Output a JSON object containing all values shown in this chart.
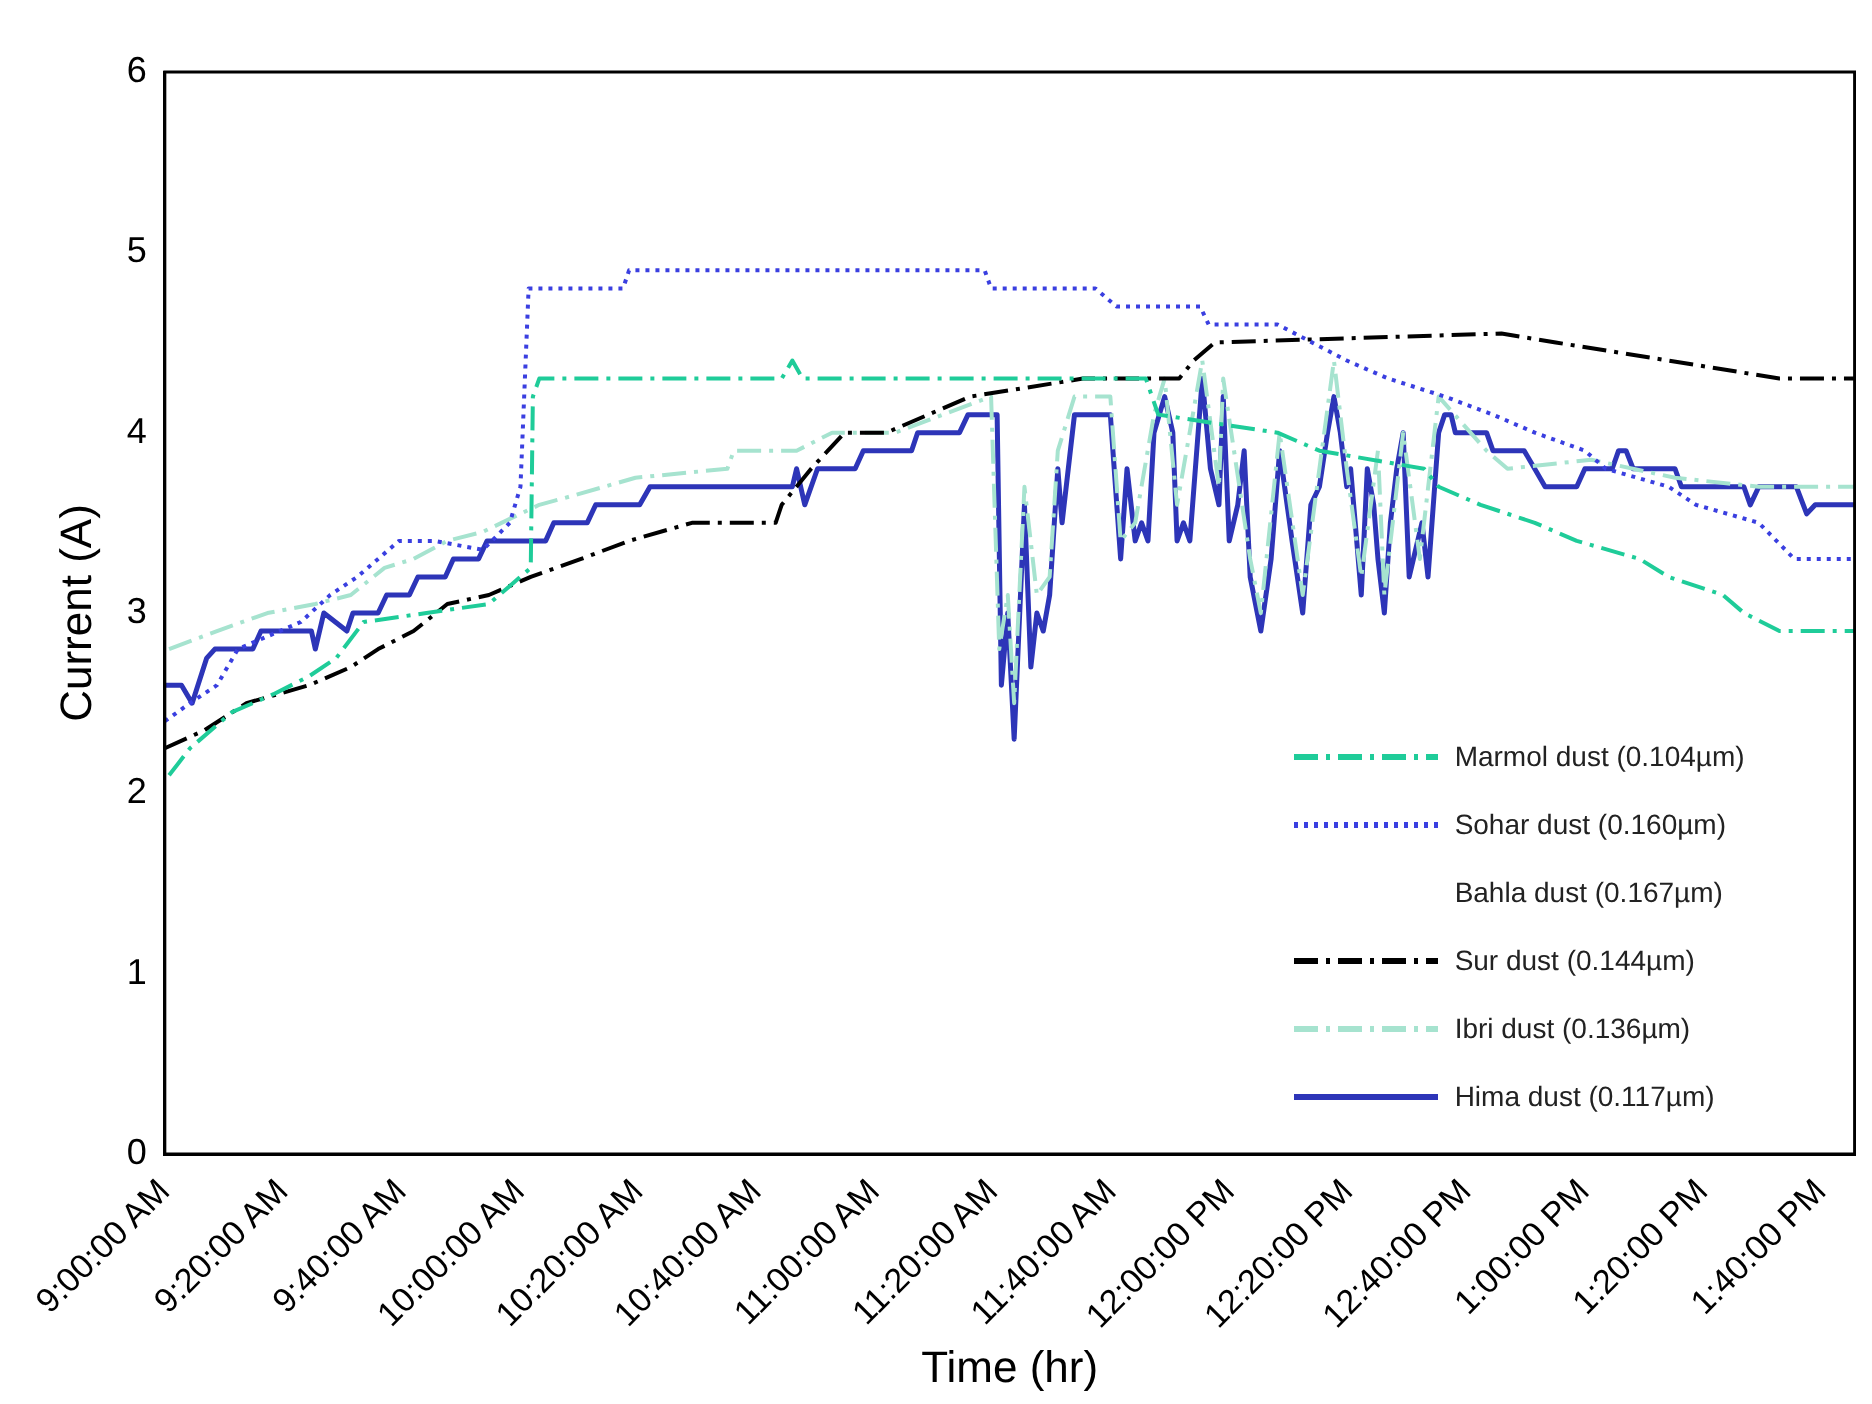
{
  "chart_data": {
    "type": "line",
    "xlabel": "Time (hr)",
    "ylabel": "Current (A)",
    "xlim": [
      9,
      13.761
    ],
    "ylim": [
      0,
      6
    ],
    "yticks": [
      0,
      1,
      2,
      3,
      4,
      5,
      6
    ],
    "xticks": [
      {
        "value": 9,
        "label": "9:00:00 AM"
      },
      {
        "value": 9.3333,
        "label": "9:20:00 AM"
      },
      {
        "value": 9.6667,
        "label": "9:40:00 AM"
      },
      {
        "value": 10,
        "label": "10:00:00 AM"
      },
      {
        "value": 10.3333,
        "label": "10:20:00 AM"
      },
      {
        "value": 10.6667,
        "label": "10:40:00 AM"
      },
      {
        "value": 11,
        "label": "11:00:00 AM"
      },
      {
        "value": 11.3333,
        "label": "11:20:00 AM"
      },
      {
        "value": 11.6667,
        "label": "11:40:00 AM"
      },
      {
        "value": 12,
        "label": "12:00:00 PM"
      },
      {
        "value": 12.3333,
        "label": "12:20:00 PM"
      },
      {
        "value": 12.6667,
        "label": "12:40:00 PM"
      },
      {
        "value": 13,
        "label": "1:00:00 PM"
      },
      {
        "value": 13.3333,
        "label": "1:20:00 PM"
      },
      {
        "value": 13.6667,
        "label": "1:40:00 PM"
      }
    ],
    "grid": false,
    "legend": "bottom right",
    "marker": "none",
    "series": [
      {
        "name": "Marmol dust (0.104µm)",
        "color": "#1fcc99",
        "line_style": "dashed",
        "x": [
          9.012,
          9.071,
          9.189,
          9.306,
          9.407,
          9.483,
          9.56,
          9.737,
          9.913,
          10.031,
          10.037,
          10.055,
          10.738,
          10.768,
          10.797,
          11.764,
          11.799,
          12.135,
          12.253,
          12.548,
          12.589,
          12.707,
          12.86,
          12.978,
          13.155,
          13.237,
          13.39,
          13.449,
          13.549,
          13.761
        ],
        "values": [
          2.1,
          2.25,
          2.45,
          2.55,
          2.65,
          2.75,
          2.95,
          3.0,
          3.05,
          3.25,
          4.2,
          4.3,
          4.3,
          4.4,
          4.3,
          4.3,
          4.1,
          4.0,
          3.9,
          3.8,
          3.7,
          3.6,
          3.5,
          3.4,
          3.3,
          3.2,
          3.1,
          3.0,
          2.9,
          2.9
        ]
      },
      {
        "name": "Sohar dust (0.160µm)",
        "color": "#3a3fe0",
        "line_style": "dotted",
        "x": [
          9.0,
          9.071,
          9.147,
          9.206,
          9.383,
          9.466,
          9.542,
          9.66,
          9.76,
          9.896,
          9.972,
          10.002,
          10.025,
          10.291,
          10.308,
          11.31,
          11.328,
          11.622,
          11.681,
          11.917,
          11.941,
          12.135,
          12.33,
          12.447,
          12.607,
          12.742,
          12.86,
          13.001,
          13.06,
          13.237,
          13.314,
          13.491,
          13.591,
          13.761
        ],
        "values": [
          2.4,
          2.5,
          2.6,
          2.8,
          2.95,
          3.1,
          3.2,
          3.4,
          3.4,
          3.35,
          3.5,
          3.7,
          4.8,
          4.8,
          4.9,
          4.9,
          4.8,
          4.8,
          4.7,
          4.7,
          4.6,
          4.6,
          4.4,
          4.3,
          4.2,
          4.1,
          4.0,
          3.9,
          3.8,
          3.7,
          3.6,
          3.5,
          3.3,
          3.3
        ]
      },
      {
        "name": "Bahla dust (0.167µm)"
      },
      {
        "name": "Sur dust (0.144µm)",
        "color": "#000000",
        "line_style": "dashed",
        "x": [
          9.0,
          9.112,
          9.23,
          9.407,
          9.524,
          9.601,
          9.701,
          9.796,
          9.913,
          10.031,
          10.173,
          10.308,
          10.485,
          10.721,
          10.738,
          10.821,
          10.915,
          11.033,
          11.151,
          11.269,
          11.587,
          11.858,
          11.899,
          11.958,
          12.766,
          12.919,
          13.237,
          13.549,
          13.761
        ],
        "values": [
          2.25,
          2.35,
          2.5,
          2.6,
          2.7,
          2.8,
          2.9,
          3.05,
          3.1,
          3.2,
          3.3,
          3.4,
          3.5,
          3.5,
          3.6,
          3.8,
          4.0,
          4.0,
          4.1,
          4.2,
          4.3,
          4.3,
          4.4,
          4.5,
          4.55,
          4.5,
          4.4,
          4.3,
          4.3
        ]
      },
      {
        "name": "Ibri dust (0.136µm)",
        "color": "#a6e3cf",
        "line_style": "dashed",
        "x": [
          9.012,
          9.147,
          9.289,
          9.424,
          9.524,
          9.619,
          9.701,
          9.796,
          9.896,
          10.055,
          10.149,
          10.326,
          10.585,
          10.603,
          10.78,
          10.88,
          11.057,
          11.192,
          11.328,
          11.351,
          11.375,
          11.393,
          11.422,
          11.457,
          11.493,
          11.516,
          11.563,
          11.664,
          11.693,
          11.734,
          11.787,
          11.817,
          11.852,
          11.923,
          11.97,
          11.982,
          12.058,
          12.088,
          12.141,
          12.206,
          12.253,
          12.294,
          12.33,
          12.371,
          12.418,
          12.436,
          12.489,
          12.536,
          12.589,
          12.724,
          12.783,
          13.019,
          13.255,
          13.491,
          13.761
        ],
        "values": [
          2.8,
          2.9,
          3.0,
          3.05,
          3.1,
          3.25,
          3.3,
          3.4,
          3.45,
          3.6,
          3.65,
          3.75,
          3.8,
          3.9,
          3.9,
          4.0,
          4.0,
          4.1,
          4.2,
          2.8,
          3.1,
          2.5,
          3.7,
          3.1,
          3.2,
          3.9,
          4.2,
          4.2,
          3.4,
          3.5,
          4.1,
          4.3,
          3.6,
          4.4,
          3.7,
          4.3,
          3.3,
          3.0,
          4.0,
          3.1,
          3.8,
          4.4,
          3.8,
          3.2,
          3.9,
          3.1,
          4.0,
          3.3,
          4.2,
          3.9,
          3.8,
          3.85,
          3.75,
          3.7,
          3.7
        ]
      },
      {
        "name": "Hima dust (0.117µm)",
        "color": "#2d35b8",
        "line_style": "solid",
        "x": [
          9.0,
          9.047,
          9.077,
          9.118,
          9.141,
          9.248,
          9.271,
          9.413,
          9.424,
          9.448,
          9.513,
          9.53,
          9.601,
          9.625,
          9.689,
          9.713,
          9.79,
          9.813,
          9.884,
          9.908,
          10.073,
          10.096,
          10.19,
          10.214,
          10.338,
          10.367,
          10.768,
          10.78,
          10.803,
          10.839,
          10.945,
          10.968,
          11.104,
          11.121,
          11.239,
          11.263,
          11.345,
          11.357,
          11.375,
          11.393,
          11.422,
          11.44,
          11.457,
          11.475,
          11.493,
          11.516,
          11.528,
          11.563,
          11.664,
          11.693,
          11.711,
          11.734,
          11.752,
          11.77,
          11.787,
          11.817,
          11.84,
          11.852,
          11.87,
          11.888,
          11.923,
          11.946,
          11.97,
          11.982,
          11.999,
          12.023,
          12.041,
          12.058,
          12.088,
          12.117,
          12.141,
          12.176,
          12.206,
          12.229,
          12.253,
          12.276,
          12.294,
          12.312,
          12.33,
          12.341,
          12.371,
          12.388,
          12.406,
          12.418,
          12.436,
          12.453,
          12.471,
          12.489,
          12.506,
          12.542,
          12.559,
          12.589,
          12.606,
          12.624,
          12.636,
          12.724,
          12.742,
          12.83,
          12.889,
          12.978,
          13.001,
          13.078,
          13.096,
          13.117,
          13.137,
          13.255,
          13.273,
          13.449,
          13.467,
          13.491,
          13.597,
          13.626,
          13.65,
          13.761
        ],
        "values": [
          2.6,
          2.6,
          2.5,
          2.75,
          2.8,
          2.8,
          2.9,
          2.9,
          2.8,
          3.0,
          2.9,
          3.0,
          3.0,
          3.1,
          3.1,
          3.2,
          3.2,
          3.3,
          3.3,
          3.4,
          3.4,
          3.5,
          3.5,
          3.6,
          3.6,
          3.7,
          3.7,
          3.8,
          3.6,
          3.8,
          3.8,
          3.9,
          3.9,
          4.0,
          4.0,
          4.1,
          4.1,
          2.6,
          3.0,
          2.3,
          3.6,
          2.7,
          3.0,
          2.9,
          3.1,
          3.8,
          3.5,
          4.1,
          4.1,
          3.3,
          3.8,
          3.4,
          3.5,
          3.4,
          4.0,
          4.2,
          4.0,
          3.4,
          3.5,
          3.4,
          4.3,
          3.8,
          3.6,
          4.2,
          3.4,
          3.6,
          3.9,
          3.2,
          2.9,
          3.3,
          3.9,
          3.4,
          3.0,
          3.6,
          3.7,
          4.0,
          4.2,
          4.0,
          3.7,
          3.8,
          3.1,
          3.8,
          3.6,
          3.3,
          3.0,
          3.5,
          3.8,
          4.0,
          3.2,
          3.5,
          3.2,
          4.0,
          4.1,
          4.1,
          4.0,
          4.0,
          3.9,
          3.9,
          3.7,
          3.7,
          3.8,
          3.8,
          3.9,
          3.9,
          3.8,
          3.8,
          3.7,
          3.7,
          3.6,
          3.7,
          3.7,
          3.55,
          3.6,
          3.6
        ]
      }
    ]
  }
}
